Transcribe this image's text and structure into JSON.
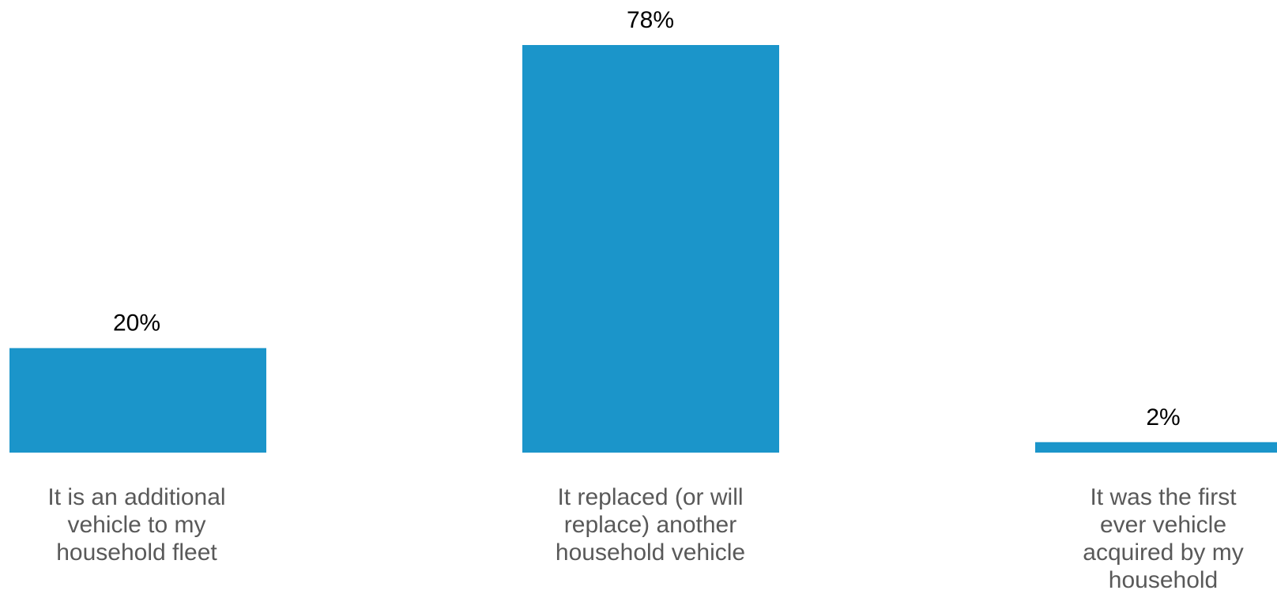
{
  "chart_data": {
    "type": "bar",
    "categories": [
      "It is an additional vehicle to my household fleet",
      "It replaced (or will replace) another household vehicle",
      "It was the first ever vehicle acquired by my household"
    ],
    "values": [
      20,
      78,
      2
    ],
    "data_labels": [
      "20%",
      "78%",
      "2%"
    ],
    "ylim": [
      0,
      78
    ],
    "grid": false,
    "legend": "none",
    "bar_color": "#1b95ca",
    "label_color": "#000000",
    "category_color": "#595959"
  }
}
